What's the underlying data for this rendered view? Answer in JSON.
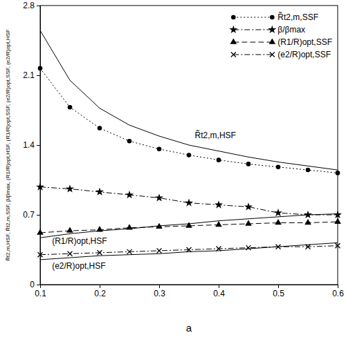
{
  "chart_data": {
    "type": "line",
    "x_label": "a",
    "y_label": "R̃t2,m,HSF, R̃t2,m,SSF, β/βmax, (R1/R)opt,HSF, (R1/R)opt,SSF, (e2/R)opt,SSF, (e2/R)opt,HSF",
    "x": [
      0.1,
      0.15,
      0.2,
      0.25,
      0.3,
      0.35,
      0.4,
      0.45,
      0.5,
      0.55,
      0.6
    ],
    "xlim": [
      0.1,
      0.6
    ],
    "xticks": [
      0.1,
      0.2,
      0.3,
      0.4,
      0.5,
      0.6
    ],
    "ylim": [
      0,
      2.8
    ],
    "yticks": [
      0,
      0.7,
      1.4,
      2.1,
      2.8
    ],
    "grid": false,
    "legend": "upper right",
    "series": [
      {
        "name": "R̃t2,m,SSF",
        "color": "#000000",
        "marker": "circle",
        "line_style": "dotted",
        "values": [
          2.17,
          1.78,
          1.57,
          1.44,
          1.36,
          1.3,
          1.25,
          1.21,
          1.18,
          1.15,
          1.12
        ]
      },
      {
        "name": "β/βmax",
        "color": "#000000",
        "marker": "star",
        "line_style": "dashdot",
        "values": [
          0.98,
          0.96,
          0.93,
          0.9,
          0.87,
          0.82,
          0.8,
          0.78,
          0.72,
          0.7,
          0.7
        ]
      },
      {
        "name": "(R1/R)opt,SSF",
        "color": "#000000",
        "marker": "triangle",
        "line_style": "dashed",
        "values": [
          0.52,
          0.54,
          0.55,
          0.57,
          0.58,
          0.59,
          0.6,
          0.61,
          0.62,
          0.62,
          0.63
        ]
      },
      {
        "name": "(e2/R)opt,SSF",
        "color": "#000000",
        "marker": "x",
        "line_style": "dashdot",
        "values": [
          0.3,
          0.31,
          0.32,
          0.33,
          0.34,
          0.35,
          0.36,
          0.37,
          0.38,
          0.38,
          0.39
        ]
      },
      {
        "color": "#000000",
        "line_style": "solid",
        "values": [
          2.55,
          2.05,
          1.77,
          1.6,
          1.49,
          1.4,
          1.34,
          1.28,
          1.23,
          1.19,
          1.15
        ]
      },
      {
        "color": "#000000",
        "line_style": "solid",
        "values": [
          0.47,
          0.51,
          0.54,
          0.56,
          0.59,
          0.61,
          0.64,
          0.66,
          0.68,
          0.7,
          0.71
        ]
      },
      {
        "color": "#000000",
        "line_style": "solid",
        "values": [
          0.25,
          0.27,
          0.29,
          0.3,
          0.31,
          0.33,
          0.34,
          0.36,
          0.38,
          0.4,
          0.42
        ]
      }
    ],
    "annotations": [
      {
        "text": "R̃t2,m,HSF",
        "x": 0.36,
        "y": 1.47
      },
      {
        "text": "(R1/R)opt,HSF",
        "x": 0.12,
        "y": 0.41
      },
      {
        "text": "(e2/R)opt,HSF",
        "x": 0.12,
        "y": 0.16
      }
    ]
  }
}
